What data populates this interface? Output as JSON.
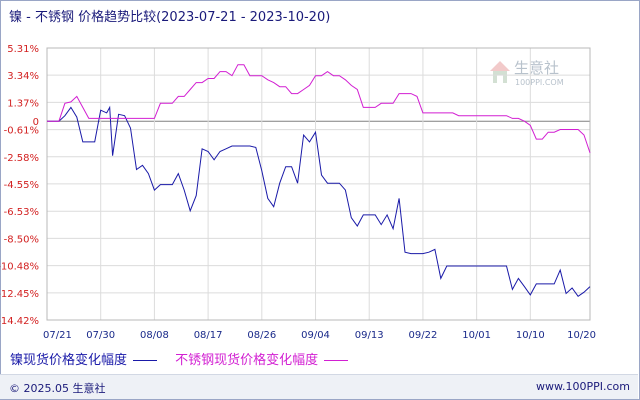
{
  "title": "镍 - 不锈钢 价格趋势比较(2023-07-21 - 2023-10-20)",
  "watermark": {
    "text": "生意社",
    "sub": "100PPI.COM"
  },
  "footer": {
    "left": "© 2025.05 生意社",
    "right": "www.100PPI.com"
  },
  "colors": {
    "nickel": "#1a1aa8",
    "steel": "#d21fd2",
    "ytick": "#d21f1f",
    "xtick": "#1a2a8a",
    "grid": "#dcdcdc",
    "zero": "#808080"
  },
  "chart_data": {
    "type": "line",
    "ylim": [
      -14.42,
      5.31
    ],
    "yticks": [
      "5.31%",
      "3.34%",
      "1.37%",
      "0",
      "-0.61%",
      "-2.58%",
      "-4.55%",
      "-6.53%",
      "-8.50%",
      "-10.48%",
      "-12.45%",
      "-14.42%"
    ],
    "ytick_values": [
      5.31,
      3.34,
      1.37,
      0,
      -0.61,
      -2.58,
      -4.55,
      -6.53,
      -8.5,
      -10.48,
      -12.45,
      -14.42
    ],
    "xticks": [
      "07/21",
      "07/30",
      "08/08",
      "08/17",
      "08/26",
      "09/04",
      "09/13",
      "09/22",
      "10/01",
      "10/10",
      "10/20"
    ],
    "xtick_days": [
      0,
      9,
      18,
      27,
      36,
      45,
      54,
      63,
      72,
      81,
      91
    ],
    "x_range": [
      0,
      91
    ],
    "series": [
      {
        "name": "镍现货价格变化幅度",
        "points": [
          [
            0,
            0
          ],
          [
            2,
            0
          ],
          [
            3,
            0.4
          ],
          [
            4,
            1.0
          ],
          [
            5,
            0.3
          ],
          [
            6,
            -1.5
          ],
          [
            7,
            -1.5
          ],
          [
            8,
            -1.5
          ],
          [
            9,
            0.8
          ],
          [
            10,
            0.6
          ],
          [
            10.5,
            1.0
          ],
          [
            11,
            -2.5
          ],
          [
            12,
            0.5
          ],
          [
            13,
            0.4
          ],
          [
            14,
            -0.5
          ],
          [
            15,
            -3.5
          ],
          [
            16,
            -3.2
          ],
          [
            17,
            -3.8
          ],
          [
            18,
            -5.0
          ],
          [
            19,
            -4.6
          ],
          [
            20,
            -4.6
          ],
          [
            21,
            -4.6
          ],
          [
            22,
            -3.8
          ],
          [
            23,
            -5.0
          ],
          [
            24,
            -6.5
          ],
          [
            25,
            -5.4
          ],
          [
            26,
            -2.0
          ],
          [
            27,
            -2.2
          ],
          [
            28,
            -2.8
          ],
          [
            29,
            -2.2
          ],
          [
            30,
            -2.0
          ],
          [
            31,
            -1.8
          ],
          [
            32,
            -1.8
          ],
          [
            33,
            -1.8
          ],
          [
            34,
            -1.8
          ],
          [
            35,
            -1.9
          ],
          [
            36,
            -3.6
          ],
          [
            37,
            -5.6
          ],
          [
            38,
            -6.2
          ],
          [
            39,
            -4.5
          ],
          [
            40,
            -3.3
          ],
          [
            41,
            -3.3
          ],
          [
            42,
            -4.5
          ],
          [
            43,
            -1.0
          ],
          [
            44,
            -1.5
          ],
          [
            45,
            -0.8
          ],
          [
            46,
            -3.9
          ],
          [
            47,
            -4.5
          ],
          [
            48,
            -4.5
          ],
          [
            49,
            -4.5
          ],
          [
            50,
            -5.0
          ],
          [
            51,
            -7.0
          ],
          [
            52,
            -7.6
          ],
          [
            53,
            -6.8
          ],
          [
            54,
            -6.8
          ],
          [
            55,
            -6.8
          ],
          [
            56,
            -7.5
          ],
          [
            57,
            -6.8
          ],
          [
            58,
            -7.8
          ],
          [
            59,
            -5.6
          ],
          [
            60,
            -9.5
          ],
          [
            61,
            -9.6
          ],
          [
            62,
            -9.6
          ],
          [
            63,
            -9.6
          ],
          [
            64,
            -9.5
          ],
          [
            65,
            -9.3
          ],
          [
            66,
            -11.4
          ],
          [
            67,
            -10.5
          ],
          [
            68,
            -10.5
          ],
          [
            69,
            -10.5
          ],
          [
            70,
            -10.5
          ],
          [
            71,
            -10.5
          ],
          [
            72,
            -10.5
          ],
          [
            73,
            -10.5
          ],
          [
            74,
            -10.5
          ],
          [
            75,
            -10.5
          ],
          [
            76,
            -10.5
          ],
          [
            77,
            -10.5
          ],
          [
            78,
            -12.2
          ],
          [
            79,
            -11.4
          ],
          [
            80,
            -12.0
          ],
          [
            81,
            -12.6
          ],
          [
            82,
            -11.8
          ],
          [
            83,
            -11.8
          ],
          [
            84,
            -11.8
          ],
          [
            85,
            -11.8
          ],
          [
            86,
            -10.8
          ],
          [
            87,
            -12.5
          ],
          [
            88,
            -12.1
          ],
          [
            89,
            -12.7
          ],
          [
            90,
            -12.4
          ],
          [
            91,
            -12.0
          ]
        ]
      },
      {
        "name": "不锈钢现货价格变化幅度",
        "points": [
          [
            0,
            0
          ],
          [
            2,
            0
          ],
          [
            3,
            1.3
          ],
          [
            4,
            1.4
          ],
          [
            5,
            1.8
          ],
          [
            6,
            1.0
          ],
          [
            7,
            0.2
          ],
          [
            8,
            0.2
          ],
          [
            9,
            0.2
          ],
          [
            10,
            0.2
          ],
          [
            11,
            0.2
          ],
          [
            12,
            0.2
          ],
          [
            13,
            0.2
          ],
          [
            14,
            0.2
          ],
          [
            15,
            0.2
          ],
          [
            16,
            0.2
          ],
          [
            17,
            0.2
          ],
          [
            18,
            0.2
          ],
          [
            19,
            1.3
          ],
          [
            20,
            1.3
          ],
          [
            21,
            1.3
          ],
          [
            22,
            1.8
          ],
          [
            23,
            1.8
          ],
          [
            24,
            2.3
          ],
          [
            25,
            2.8
          ],
          [
            26,
            2.8
          ],
          [
            27,
            3.1
          ],
          [
            28,
            3.1
          ],
          [
            29,
            3.6
          ],
          [
            30,
            3.6
          ],
          [
            31,
            3.3
          ],
          [
            32,
            4.1
          ],
          [
            33,
            4.1
          ],
          [
            34,
            3.3
          ],
          [
            35,
            3.3
          ],
          [
            36,
            3.3
          ],
          [
            37,
            3.0
          ],
          [
            38,
            2.8
          ],
          [
            39,
            2.5
          ],
          [
            40,
            2.5
          ],
          [
            41,
            2.0
          ],
          [
            42,
            2.0
          ],
          [
            43,
            2.3
          ],
          [
            44,
            2.6
          ],
          [
            45,
            3.3
          ],
          [
            46,
            3.3
          ],
          [
            47,
            3.6
          ],
          [
            48,
            3.3
          ],
          [
            49,
            3.3
          ],
          [
            50,
            3.0
          ],
          [
            51,
            2.6
          ],
          [
            52,
            2.3
          ],
          [
            53,
            1.0
          ],
          [
            54,
            1.0
          ],
          [
            55,
            1.0
          ],
          [
            56,
            1.3
          ],
          [
            57,
            1.3
          ],
          [
            58,
            1.3
          ],
          [
            59,
            2.0
          ],
          [
            60,
            2.0
          ],
          [
            61,
            2.0
          ],
          [
            62,
            1.8
          ],
          [
            63,
            0.6
          ],
          [
            64,
            0.6
          ],
          [
            65,
            0.6
          ],
          [
            66,
            0.6
          ],
          [
            67,
            0.6
          ],
          [
            68,
            0.6
          ],
          [
            69,
            0.4
          ],
          [
            70,
            0.4
          ],
          [
            71,
            0.4
          ],
          [
            72,
            0.4
          ],
          [
            73,
            0.4
          ],
          [
            74,
            0.4
          ],
          [
            75,
            0.4
          ],
          [
            76,
            0.4
          ],
          [
            77,
            0.4
          ],
          [
            78,
            0.2
          ],
          [
            79,
            0.2
          ],
          [
            80,
            0.0
          ],
          [
            81,
            -0.3
          ],
          [
            82,
            -1.3
          ],
          [
            83,
            -1.3
          ],
          [
            84,
            -0.8
          ],
          [
            85,
            -0.8
          ],
          [
            86,
            -0.6
          ],
          [
            87,
            -0.6
          ],
          [
            88,
            -0.6
          ],
          [
            89,
            -0.6
          ],
          [
            90,
            -1.0
          ],
          [
            91,
            -2.3
          ]
        ]
      }
    ]
  }
}
